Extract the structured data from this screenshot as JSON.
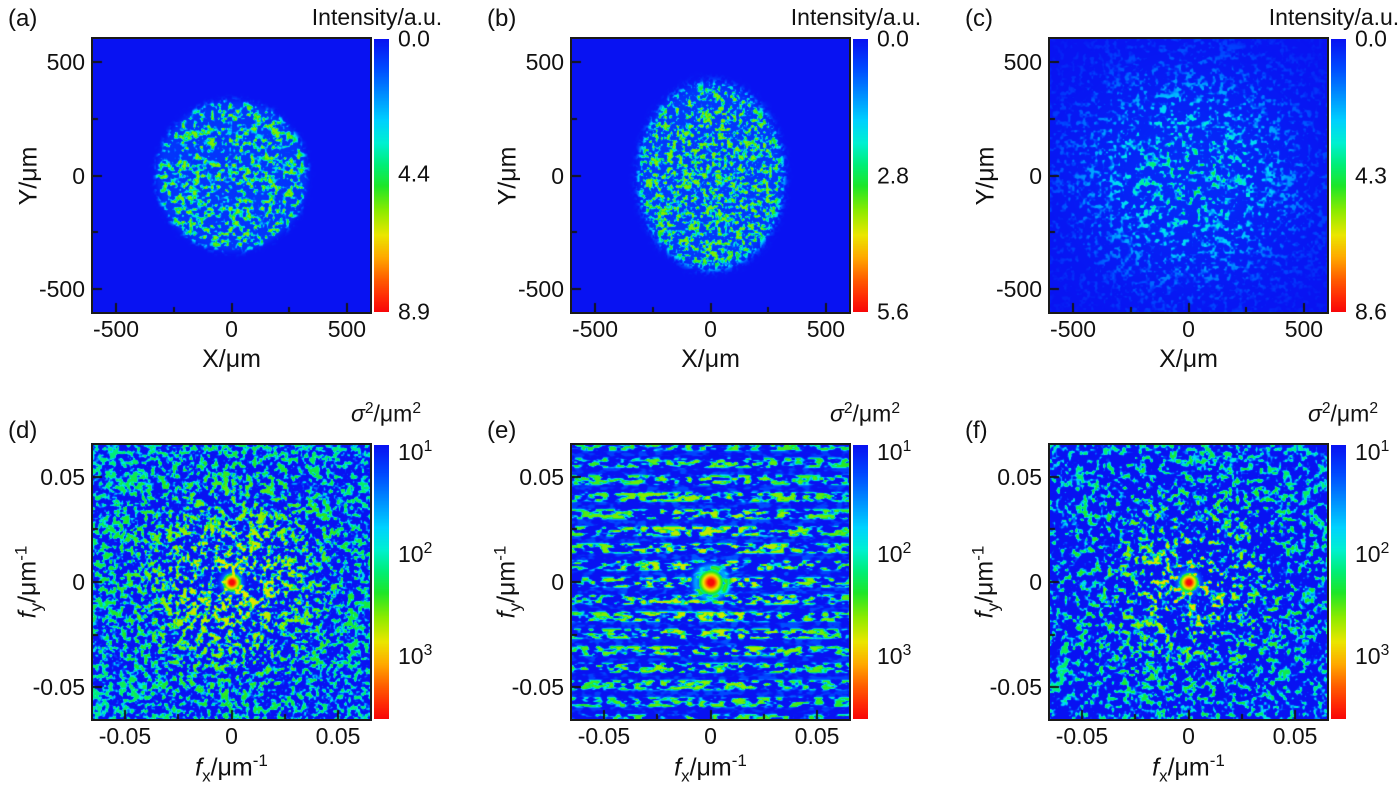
{
  "chart_data": {
    "type": "heatmap",
    "description": "Six-panel speckle figure: top row (a-c) intensity speckle discs, bottom row (d-f) spatial-frequency variance spectra with central red peak.",
    "subplots": [
      {
        "id": "a",
        "label": "(a)",
        "colorbar": {
          "title": [
            [
              "Intensity/a.u.",
              ""
            ]
          ],
          "scale": "linear",
          "range": [
            0,
            8.9
          ],
          "ticks": [
            {
              "v": 0,
              "label": [
                [
                  "0.0",
                  ""
                ]
              ]
            },
            {
              "v": 4.4,
              "label": [
                [
                  "4.4",
                  ""
                ]
              ]
            },
            {
              "v": 8.9,
              "label": [
                [
                  "8.9",
                  ""
                ]
              ]
            }
          ]
        },
        "x_axis": {
          "label": [
            [
              "X/μm",
              ""
            ]
          ],
          "range": [
            -600,
            600
          ],
          "ticks": [
            {
              "v": -500,
              "label": "-500"
            },
            {
              "v": 0,
              "label": "0"
            },
            {
              "v": 500,
              "label": "500"
            }
          ],
          "minor": [
            -250,
            250
          ]
        },
        "y_axis": {
          "label": [
            [
              "Y/μm",
              ""
            ]
          ],
          "range": [
            -600,
            600
          ],
          "ticks": [
            {
              "v": 500,
              "label": "500"
            },
            {
              "v": 0,
              "label": "0"
            },
            {
              "v": -500,
              "label": "-500"
            }
          ],
          "minor": [
            -250,
            250
          ]
        },
        "texture": {
          "kind": "disc",
          "seed": 101,
          "cell": 3.6,
          "lo": 0.45,
          "hi": 0.76,
          "rx": 0.272,
          "ry": 0.275,
          "edge": 0.02,
          "floor": 0.12,
          "umax": 0.56,
          "bonus": 0.06
        }
      },
      {
        "id": "b",
        "label": "(b)",
        "colorbar": {
          "title": [
            [
              "Intensity/a.u.",
              ""
            ]
          ],
          "scale": "linear",
          "range": [
            0,
            5.6
          ],
          "ticks": [
            {
              "v": 0,
              "label": [
                [
                  "0.0",
                  ""
                ]
              ]
            },
            {
              "v": 2.8,
              "label": [
                [
                  "2.8",
                  ""
                ]
              ]
            },
            {
              "v": 5.6,
              "label": [
                [
                  "5.6",
                  ""
                ]
              ]
            }
          ]
        },
        "x_axis": {
          "label": [
            [
              "X/μm",
              ""
            ]
          ],
          "range": [
            -600,
            600
          ],
          "ticks": [
            {
              "v": -500,
              "label": "-500"
            },
            {
              "v": 0,
              "label": "0"
            },
            {
              "v": 500,
              "label": "500"
            }
          ],
          "minor": [
            -250,
            250
          ]
        },
        "y_axis": {
          "label": [
            [
              "Y/μm",
              ""
            ]
          ],
          "range": [
            -600,
            600
          ],
          "ticks": [
            {
              "v": 500,
              "label": "500"
            },
            {
              "v": 0,
              "label": "0"
            },
            {
              "v": -500,
              "label": "-500"
            }
          ],
          "minor": [
            -250,
            250
          ]
        },
        "texture": {
          "kind": "disc",
          "seed": 202,
          "cell": 3.0,
          "lo": 0.42,
          "hi": 0.72,
          "rx": 0.262,
          "ry": 0.34,
          "edge": 0.025,
          "floor": 0.13,
          "umax": 0.56,
          "bonus": 0.06
        }
      },
      {
        "id": "c",
        "label": "(c)",
        "colorbar": {
          "title": [
            [
              "Intensity/a.u.",
              ""
            ]
          ],
          "scale": "linear",
          "range": [
            0,
            8.6
          ],
          "ticks": [
            {
              "v": 0,
              "label": [
                [
                  "0.0",
                  ""
                ]
              ]
            },
            {
              "v": 4.3,
              "label": [
                [
                  "4.3",
                  ""
                ]
              ]
            },
            {
              "v": 8.6,
              "label": [
                [
                  "8.6",
                  ""
                ]
              ]
            }
          ]
        },
        "x_axis": {
          "label": [
            [
              "X/μm",
              ""
            ]
          ],
          "range": [
            -600,
            600
          ],
          "ticks": [
            {
              "v": -500,
              "label": "-500"
            },
            {
              "v": 0,
              "label": "0"
            },
            {
              "v": 500,
              "label": "500"
            }
          ],
          "minor": [
            -250,
            250
          ]
        },
        "y_axis": {
          "label": [
            [
              "Y/μm",
              ""
            ]
          ],
          "range": [
            -600,
            600
          ],
          "ticks": [
            {
              "v": 500,
              "label": "500"
            },
            {
              "v": 0,
              "label": "0"
            },
            {
              "v": -500,
              "label": "-500"
            }
          ],
          "minor": [
            -250,
            250
          ]
        },
        "texture": {
          "kind": "gauss",
          "seed": 303,
          "cell": 3.8,
          "lo": 0.48,
          "hi": 0.8,
          "rx": 0.42,
          "ry": 0.4,
          "gk": 1.15,
          "floor": 0.1,
          "umax": 0.48,
          "bonus": 0.04
        }
      },
      {
        "id": "d",
        "label": "(d)",
        "colorbar": {
          "title": [
            [
              "σ",
              "i"
            ],
            [
              "2",
              "sup"
            ],
            [
              "/μm",
              ""
            ],
            [
              "2",
              "sup"
            ]
          ],
          "scale": "log",
          "range": [
            8.5,
            4200
          ],
          "ticks": [
            {
              "v": 10,
              "label": [
                [
                  "10",
                  ""
                ],
                [
                  "1",
                  "sup"
                ]
              ]
            },
            {
              "v": 100,
              "label": [
                [
                  "10",
                  ""
                ],
                [
                  "2",
                  "sup"
                ]
              ]
            },
            {
              "v": 1000,
              "label": [
                [
                  "10",
                  ""
                ],
                [
                  "3",
                  "sup"
                ]
              ]
            }
          ]
        },
        "x_axis": {
          "label": [
            [
              "f",
              "i"
            ],
            [
              "x",
              "sub"
            ],
            [
              "/μm",
              ""
            ],
            [
              "-1",
              "sup"
            ]
          ],
          "range": [
            -0.065,
            0.065
          ],
          "ticks": [
            {
              "v": -0.05,
              "label": "-0.05"
            },
            {
              "v": 0,
              "label": "0"
            },
            {
              "v": 0.05,
              "label": "0.05"
            }
          ],
          "minor": [
            -0.025,
            0.025
          ]
        },
        "y_axis": {
          "label": [
            [
              "f",
              "i"
            ],
            [
              "y",
              "sub"
            ],
            [
              "/μm",
              ""
            ],
            [
              "-1",
              "sup"
            ]
          ],
          "range": [
            -0.065,
            0.065
          ],
          "ticks": [
            {
              "v": 0.05,
              "label": "0.05"
            },
            {
              "v": 0,
              "label": "0"
            },
            {
              "v": -0.05,
              "label": "-0.05"
            }
          ],
          "minor": [
            -0.025,
            0.025
          ]
        },
        "texture": {
          "kind": "full",
          "seed": 404,
          "cell": 3.5,
          "lo": 0.42,
          "hi": 0.72,
          "e0": 0.7,
          "e1": 0.45,
          "er": 0.55,
          "umax": 0.56,
          "bonus": 0.08,
          "bonus_r": 90,
          "center": [
            2,
            0.08
          ],
          "halo": [
            0.4,
            0.6
          ]
        }
      },
      {
        "id": "e",
        "label": "(e)",
        "colorbar": {
          "title": [
            [
              "σ",
              "i"
            ],
            [
              "2",
              "sup"
            ],
            [
              "/μm",
              ""
            ],
            [
              "2",
              "sup"
            ]
          ],
          "scale": "log",
          "range": [
            8.5,
            4200
          ],
          "ticks": [
            {
              "v": 10,
              "label": [
                [
                  "10",
                  ""
                ],
                [
                  "1",
                  "sup"
                ]
              ]
            },
            {
              "v": 100,
              "label": [
                [
                  "10",
                  ""
                ],
                [
                  "2",
                  "sup"
                ]
              ]
            },
            {
              "v": 1000,
              "label": [
                [
                  "10",
                  ""
                ],
                [
                  "3",
                  "sup"
                ]
              ]
            }
          ]
        },
        "x_axis": {
          "label": [
            [
              "f",
              "i"
            ],
            [
              "x",
              "sub"
            ],
            [
              "/μm",
              ""
            ],
            [
              "-1",
              "sup"
            ]
          ],
          "range": [
            -0.065,
            0.065
          ],
          "ticks": [
            {
              "v": -0.05,
              "label": "-0.05"
            },
            {
              "v": 0,
              "label": "0"
            },
            {
              "v": 0.05,
              "label": "0.05"
            }
          ],
          "minor": [
            -0.025,
            0.025
          ]
        },
        "y_axis": {
          "label": [
            [
              "f",
              "i"
            ],
            [
              "y",
              "sub"
            ],
            [
              "/μm",
              ""
            ],
            [
              "-1",
              "sup"
            ]
          ],
          "range": [
            -0.065,
            0.065
          ],
          "ticks": [
            {
              "v": 0.05,
              "label": "0.05"
            },
            {
              "v": 0,
              "label": "0"
            },
            {
              "v": -0.05,
              "label": "-0.05"
            }
          ],
          "minor": [
            -0.025,
            0.025
          ]
        },
        "texture": {
          "kind": "stripes",
          "seed": 505,
          "cell": 3.6,
          "aspect": [
            1.8,
            0.85
          ],
          "lo": 0.4,
          "hi": 0.7,
          "e0": 0.75,
          "e1": 0.3,
          "er": 0.6,
          "umax": 0.58,
          "period": 17.1,
          "stripe_lo": 0.18,
          "stripe_hi": 0.58,
          "suppress": [
            10,
            24
          ],
          "center": [
            2.5,
            0.058
          ],
          "halo": [
            0.4,
            0.6
          ],
          "ring": [
            15,
            4.5,
            0.26
          ],
          "bonus": 0.05,
          "bonus_r": 200
        }
      },
      {
        "id": "f",
        "label": "(f)",
        "colorbar": {
          "title": [
            [
              "σ",
              "i"
            ],
            [
              "2",
              "sup"
            ],
            [
              "/μm",
              ""
            ],
            [
              "2",
              "sup"
            ]
          ],
          "scale": "log",
          "range": [
            8.5,
            4200
          ],
          "ticks": [
            {
              "v": 10,
              "label": [
                [
                  "10",
                  ""
                ],
                [
                  "1",
                  "sup"
                ]
              ]
            },
            {
              "v": 100,
              "label": [
                [
                  "10",
                  ""
                ],
                [
                  "2",
                  "sup"
                ]
              ]
            },
            {
              "v": 1000,
              "label": [
                [
                  "10",
                  ""
                ],
                [
                  "3",
                  "sup"
                ]
              ]
            }
          ]
        },
        "x_axis": {
          "label": [
            [
              "f",
              "i"
            ],
            [
              "x",
              "sub"
            ],
            [
              "/μm",
              ""
            ],
            [
              "-1",
              "sup"
            ]
          ],
          "range": [
            -0.065,
            0.065
          ],
          "ticks": [
            {
              "v": -0.05,
              "label": "-0.05"
            },
            {
              "v": 0,
              "label": "0"
            },
            {
              "v": 0.05,
              "label": "0.05"
            }
          ],
          "minor": [
            -0.025,
            0.025
          ]
        },
        "y_axis": {
          "label": [
            [
              "f",
              "i"
            ],
            [
              "y",
              "sub"
            ],
            [
              "/μm",
              ""
            ],
            [
              "-1",
              "sup"
            ]
          ],
          "range": [
            -0.065,
            0.065
          ],
          "ticks": [
            {
              "v": 0.05,
              "label": "0.05"
            },
            {
              "v": 0,
              "label": "0"
            },
            {
              "v": -0.05,
              "label": "-0.05"
            }
          ],
          "minor": [
            -0.025,
            0.025
          ]
        },
        "texture": {
          "kind": "full",
          "seed": 606,
          "cell": 3.9,
          "lo": 0.47,
          "hi": 0.77,
          "e0": 0.7,
          "e1": 0.55,
          "er": 0.5,
          "umax": 0.55,
          "bonus": 0.09,
          "bonus_r": 40,
          "center": [
            2,
            0.075
          ],
          "halo": [
            0.4,
            0.6
          ]
        }
      }
    ],
    "colormap": "jet",
    "background_color": "#0a12f2",
    "grid": false
  }
}
